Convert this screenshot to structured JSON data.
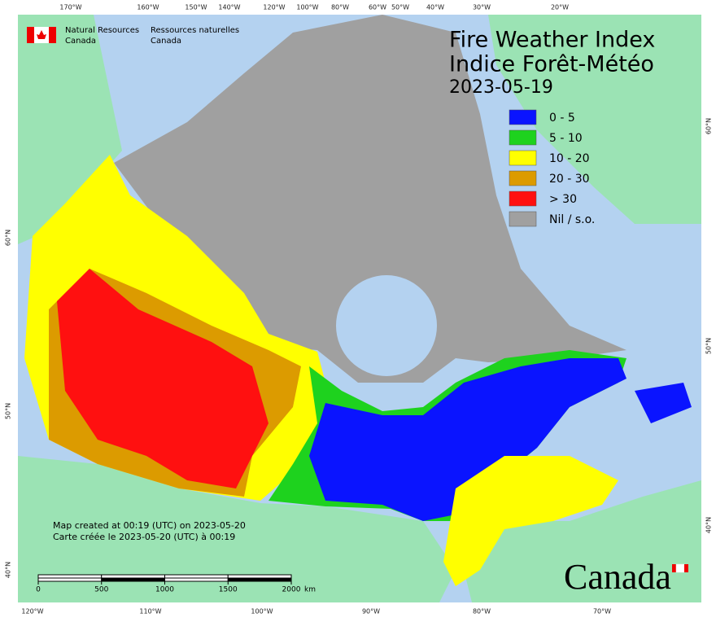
{
  "header": {
    "title_en": "Fire Weather Index",
    "title_fr": "Indice Forêt-Météo",
    "date": "2023-05-19"
  },
  "agency": {
    "en": [
      "Natural Resources",
      "Canada"
    ],
    "fr": [
      "Ressources naturelles",
      "Canada"
    ]
  },
  "legend": [
    {
      "label": "0 - 5",
      "color": "#0a14ff"
    },
    {
      "label": "5 - 10",
      "color": "#1ed21e"
    },
    {
      "label": "10 - 20",
      "color": "#ffff00"
    },
    {
      "label": "20 - 30",
      "color": "#dc9b00"
    },
    {
      "label": "> 30",
      "color": "#ff1010"
    },
    {
      "label": "Nil / s.o.",
      "color": "#a0a0a0"
    }
  ],
  "graticule": {
    "top": [
      "170°W",
      "160°W",
      "150°W",
      "140°W",
      "120°W",
      "100°W",
      "80°W",
      "60°W",
      "50°W",
      "40°W",
      "30°W",
      "20°W"
    ],
    "bottom": [
      "120°W",
      "110°W",
      "100°W",
      "90°W",
      "80°W",
      "70°W"
    ],
    "left": [
      "60°N",
      "50°N",
      "40°N"
    ],
    "right": [
      "60°N",
      "50°N",
      "40°N"
    ]
  },
  "credits": [
    "Map created at 00:19 (UTC) on 2023-05-20",
    "Carte créée le 2023-05-20 (UTC) à 00:19"
  ],
  "scale_bar": {
    "ticks": [
      0,
      500,
      1000,
      1500,
      2000
    ],
    "unit": "km"
  },
  "wordmark": "Canada"
}
